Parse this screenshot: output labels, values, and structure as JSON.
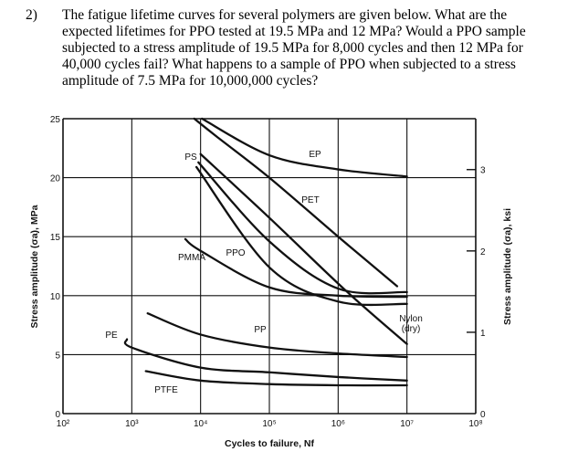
{
  "question": {
    "number": "2)",
    "lines": [
      "The fatigue lifetime curves for several polymers are given below.  What are the",
      "expected lifetimes for PPO tested at 19.5 MPa and 12 MPa?  Would a PPO sample",
      "subjected to a stress amplitude of 19.5 MPa for 8,000 cycles and then 12 MPa for",
      "40,000 cycles fail? What happens to a sample of PPO when subjected to a stress",
      "amplitude of 7.5 MPa for 10,000,000 cycles?"
    ]
  },
  "chart_data": {
    "type": "line",
    "xlabel": "Cycles to failure, Nf",
    "ylabel": "Stress amplitude (σa), MPa",
    "y2label": "Stress amplitude (σa), ksi",
    "xscale": "log",
    "xlim": [
      100,
      100000000
    ],
    "ylim": [
      0,
      25
    ],
    "y2lim_ksi": [
      0,
      3.63
    ],
    "xticks": [
      100,
      1000,
      10000,
      100000,
      1000000,
      10000000,
      100000000
    ],
    "xtick_labels": [
      "10²",
      "10³",
      "10⁴",
      "10⁵",
      "10⁶",
      "10⁷",
      "10⁸"
    ],
    "yticks": [
      0,
      5,
      10,
      15,
      20,
      25
    ],
    "ytick_labels": [
      "0",
      "5",
      "10",
      "15",
      "20",
      "25"
    ],
    "y2ticks_ksi": [
      0,
      1,
      2,
      3
    ],
    "y2tick_labels": [
      "0",
      "1",
      "2",
      "3"
    ],
    "grid": true,
    "line_color": "#111111",
    "series": [
      {
        "name": "EP",
        "x": [
          10500,
          100000,
          1000000,
          10000000
        ],
        "y": [
          25,
          21.9,
          20.7,
          20.1
        ]
      },
      {
        "name": "PET",
        "x": [
          8100,
          17000,
          100000,
          1000000,
          7200000
        ],
        "y": [
          25,
          23.5,
          20.0,
          15.0,
          10.8
        ]
      },
      {
        "name": "Nylon (dry)",
        "x": [
          10000,
          100000,
          1250000,
          10000000
        ],
        "y": [
          22.0,
          16.6,
          10.5,
          5.9
        ]
      },
      {
        "name": "PS",
        "x": [
          9300,
          100000,
          1000000,
          10000000
        ],
        "y": [
          21.3,
          14.6,
          10.6,
          10.3
        ]
      },
      {
        "name": "PPO",
        "x": [
          8700,
          100000,
          1000000,
          10000000
        ],
        "y": [
          20.9,
          12.4,
          9.5,
          9.3
        ]
      },
      {
        "name": "PMMA",
        "x": [
          6000,
          10000,
          100000,
          1000000,
          10000000
        ],
        "y": [
          14.8,
          13.8,
          10.7,
          10.0,
          9.9
        ]
      },
      {
        "name": "PP",
        "x": [
          1700,
          10000,
          100000,
          1000000,
          10000000
        ],
        "y": [
          8.5,
          6.7,
          5.6,
          5.1,
          4.8
        ]
      },
      {
        "name": "PE",
        "x": [
          850,
          1000,
          10000,
          100000,
          1000000,
          10000000
        ],
        "y": [
          6.3,
          5.6,
          3.9,
          3.5,
          3.1,
          2.8
        ]
      },
      {
        "name": "PTFE",
        "x": [
          1600,
          10000,
          100000,
          1000000,
          10000000
        ],
        "y": [
          3.6,
          2.8,
          2.5,
          2.4,
          2.4
        ]
      }
    ]
  }
}
